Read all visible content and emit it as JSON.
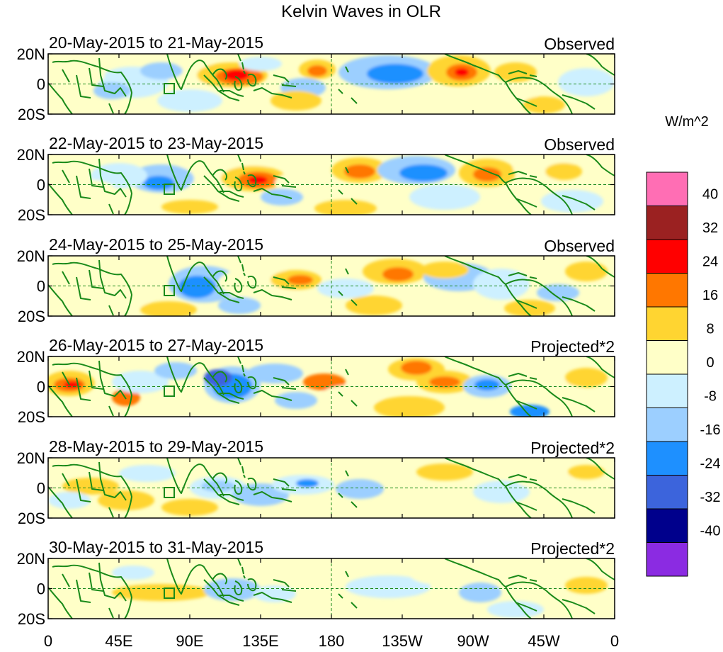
{
  "title": "Kelvin Waves in OLR",
  "unit_label": "W/m^2",
  "lat_labels": [
    "20N",
    "0",
    "20S"
  ],
  "lon_labels": [
    "0",
    "45E",
    "90E",
    "135E",
    "180",
    "135W",
    "90W",
    "45W",
    "0"
  ],
  "panels": [
    {
      "date_range": "20-May-2015 to 21-May-2015",
      "kind": "Observed"
    },
    {
      "date_range": "22-May-2015 to 23-May-2015",
      "kind": "Observed"
    },
    {
      "date_range": "24-May-2015 to 25-May-2015",
      "kind": "Observed"
    },
    {
      "date_range": "26-May-2015 to 27-May-2015",
      "kind": "Projected*2"
    },
    {
      "date_range": "28-May-2015 to 29-May-2015",
      "kind": "Projected*2"
    },
    {
      "date_range": "30-May-2015 to 31-May-2015",
      "kind": "Projected*2"
    }
  ],
  "colorbar": {
    "labels": [
      "40",
      "32",
      "24",
      "16",
      "8",
      "0",
      "-8",
      "-16",
      "-24",
      "-32",
      "-40"
    ],
    "colors": [
      "#ff6eb4",
      "#9b2121",
      "#ff0000",
      "#ff7700",
      "#ffd531",
      "#ffffc8",
      "#cdf0ff",
      "#9ccfff",
      "#1e90ff",
      "#3c64dc",
      "#00008c",
      "#8b2be2"
    ]
  },
  "palette": {
    "coast": "#1a8a1a",
    "pos1": "#ffffc8",
    "pos2": "#ffd531",
    "pos3": "#ff7700",
    "pos4": "#ff0000",
    "neg1": "#cdf0ff",
    "neg2": "#9ccfff",
    "neg3": "#1e90ff",
    "neg4": "#3c64dc"
  }
}
